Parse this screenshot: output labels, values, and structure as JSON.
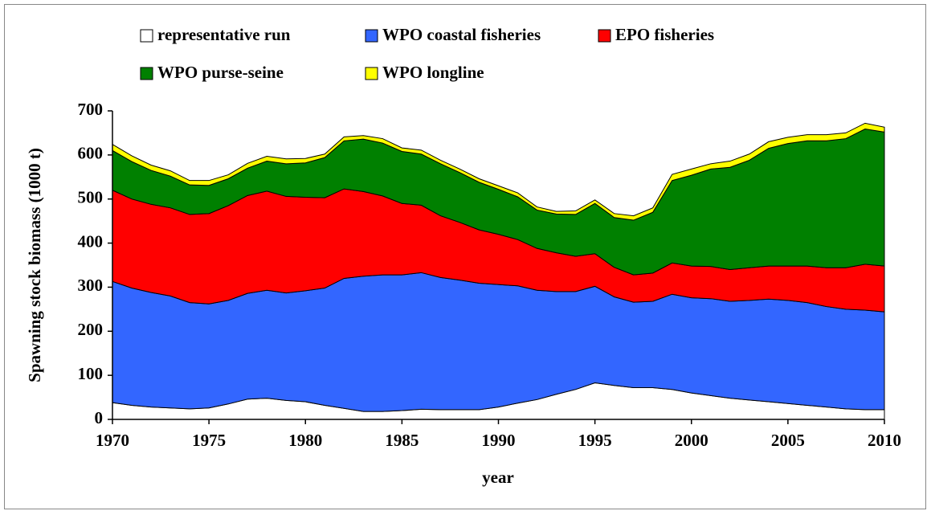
{
  "chart_data": {
    "type": "area",
    "stacked": true,
    "x_label": "year",
    "y_label": "Spawning stock biomass (1000 t)",
    "x": [
      1970,
      1971,
      1972,
      1973,
      1974,
      1975,
      1976,
      1977,
      1978,
      1979,
      1980,
      1981,
      1982,
      1983,
      1984,
      1985,
      1986,
      1987,
      1988,
      1989,
      1990,
      1991,
      1992,
      1993,
      1994,
      1995,
      1996,
      1997,
      1998,
      1999,
      2000,
      2001,
      2002,
      2003,
      2004,
      2005,
      2006,
      2007,
      2008,
      2009,
      2010
    ],
    "xlim": [
      1970,
      2010
    ],
    "xticks": [
      1970,
      1975,
      1980,
      1985,
      1990,
      1995,
      2000,
      2005,
      2010
    ],
    "ylim": [
      0,
      700
    ],
    "yticks": [
      0,
      100,
      200,
      300,
      400,
      500,
      600,
      700
    ],
    "series": [
      {
        "name": "representative run",
        "color": "#ffffff",
        "values": [
          38,
          32,
          28,
          26,
          24,
          26,
          35,
          46,
          48,
          43,
          40,
          32,
          25,
          18,
          18,
          20,
          23,
          22,
          22,
          22,
          28,
          37,
          45,
          57,
          68,
          83,
          77,
          72,
          72,
          68,
          60,
          54,
          48,
          44,
          40,
          36,
          32,
          28,
          24,
          22,
          22
        ]
      },
      {
        "name": "WPO coastal fisheries",
        "color": "#3366ff",
        "values": [
          275,
          266,
          260,
          254,
          241,
          236,
          235,
          240,
          245,
          244,
          252,
          266,
          295,
          307,
          310,
          308,
          310,
          300,
          294,
          287,
          278,
          266,
          248,
          233,
          222,
          219,
          201,
          194,
          196,
          216,
          216,
          220,
          220,
          226,
          233,
          234,
          233,
          228,
          226,
          226,
          222
        ]
      },
      {
        "name": "EPO fisheries",
        "color": "#ff0000",
        "values": [
          207,
          202,
          200,
          200,
          200,
          205,
          215,
          222,
          225,
          219,
          212,
          205,
          203,
          192,
          179,
          162,
          153,
          140,
          131,
          121,
          114,
          105,
          95,
          88,
          80,
          74,
          67,
          62,
          64,
          71,
          72,
          73,
          72,
          74,
          75,
          78,
          83,
          88,
          94,
          104,
          104
        ]
      },
      {
        "name": "WPO purse-seine",
        "color": "#008000",
        "values": [
          90,
          85,
          77,
          72,
          67,
          64,
          61,
          62,
          68,
          74,
          78,
          91,
          109,
          119,
          120,
          118,
          116,
          118,
          113,
          108,
          102,
          97,
          87,
          88,
          95,
          114,
          113,
          124,
          138,
          187,
          206,
          221,
          232,
          244,
          267,
          278,
          284,
          288,
          293,
          307,
          304
        ]
      },
      {
        "name": "WPO longline",
        "color": "#ffff00",
        "values": [
          14,
          13,
          12,
          12,
          10,
          11,
          9,
          11,
          11,
          11,
          10,
          8,
          9,
          8,
          10,
          8,
          9,
          8,
          8,
          8,
          8,
          9,
          7,
          6,
          8,
          8,
          9,
          10,
          10,
          14,
          14,
          12,
          14,
          14,
          15,
          14,
          14,
          14,
          13,
          13,
          11
        ]
      }
    ]
  }
}
